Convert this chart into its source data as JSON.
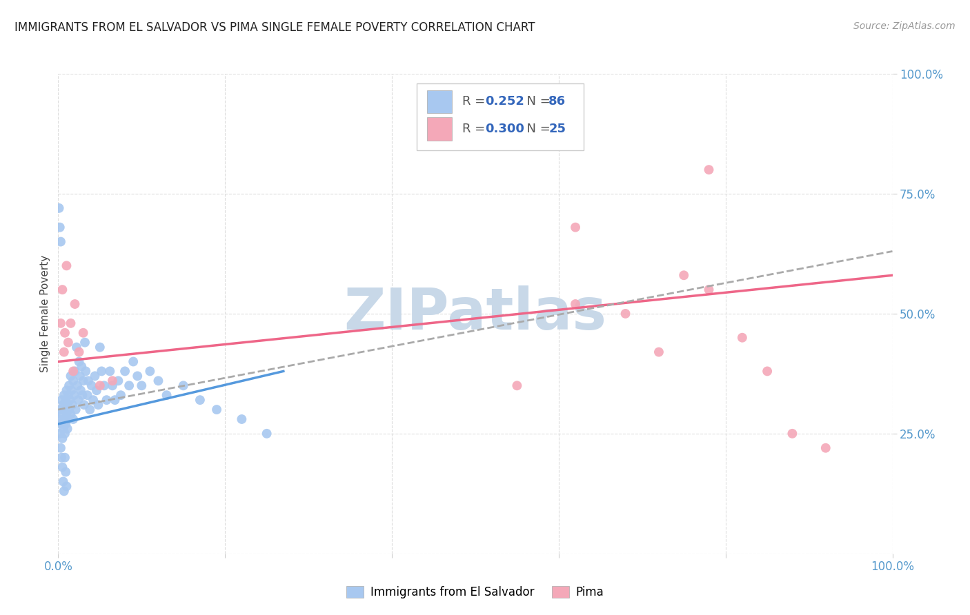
{
  "title": "IMMIGRANTS FROM EL SALVADOR VS PIMA SINGLE FEMALE POVERTY CORRELATION CHART",
  "source": "Source: ZipAtlas.com",
  "ylabel": "Single Female Poverty",
  "xlim": [
    0.0,
    1.0
  ],
  "ylim": [
    0.0,
    1.0
  ],
  "legend_r_blue": "0.252",
  "legend_n_blue": "86",
  "legend_r_pink": "0.300",
  "legend_n_pink": "25",
  "blue_color": "#A8C8F0",
  "pink_color": "#F4A8B8",
  "blue_line_color": "#5599DD",
  "pink_line_color": "#EE6688",
  "dashed_line_color": "#AAAAAA",
  "watermark_color": "#C8D8E8",
  "blue_scatter_x": [
    0.001,
    0.002,
    0.003,
    0.003,
    0.004,
    0.004,
    0.005,
    0.005,
    0.006,
    0.006,
    0.007,
    0.007,
    0.008,
    0.008,
    0.009,
    0.009,
    0.01,
    0.01,
    0.011,
    0.011,
    0.012,
    0.012,
    0.013,
    0.013,
    0.014,
    0.015,
    0.015,
    0.016,
    0.017,
    0.018,
    0.018,
    0.019,
    0.02,
    0.021,
    0.022,
    0.023,
    0.024,
    0.025,
    0.026,
    0.027,
    0.028,
    0.029,
    0.03,
    0.031,
    0.032,
    0.033,
    0.035,
    0.036,
    0.038,
    0.04,
    0.042,
    0.044,
    0.046,
    0.048,
    0.05,
    0.052,
    0.055,
    0.058,
    0.062,
    0.065,
    0.068,
    0.072,
    0.075,
    0.08,
    0.085,
    0.09,
    0.095,
    0.1,
    0.11,
    0.12,
    0.13,
    0.15,
    0.17,
    0.19,
    0.22,
    0.25,
    0.001,
    0.002,
    0.003,
    0.004,
    0.005,
    0.006,
    0.007,
    0.008,
    0.009,
    0.01
  ],
  "blue_scatter_y": [
    0.28,
    0.25,
    0.3,
    0.22,
    0.32,
    0.27,
    0.29,
    0.24,
    0.31,
    0.26,
    0.33,
    0.28,
    0.3,
    0.25,
    0.32,
    0.27,
    0.34,
    0.29,
    0.31,
    0.26,
    0.33,
    0.28,
    0.35,
    0.3,
    0.32,
    0.37,
    0.29,
    0.34,
    0.31,
    0.36,
    0.28,
    0.33,
    0.38,
    0.3,
    0.43,
    0.35,
    0.32,
    0.4,
    0.37,
    0.34,
    0.39,
    0.33,
    0.36,
    0.31,
    0.44,
    0.38,
    0.33,
    0.36,
    0.3,
    0.35,
    0.32,
    0.37,
    0.34,
    0.31,
    0.43,
    0.38,
    0.35,
    0.32,
    0.38,
    0.35,
    0.32,
    0.36,
    0.33,
    0.38,
    0.35,
    0.4,
    0.37,
    0.35,
    0.38,
    0.36,
    0.33,
    0.35,
    0.32,
    0.3,
    0.28,
    0.25,
    0.72,
    0.68,
    0.65,
    0.2,
    0.18,
    0.15,
    0.13,
    0.2,
    0.17,
    0.14
  ],
  "pink_scatter_x": [
    0.003,
    0.005,
    0.007,
    0.008,
    0.01,
    0.012,
    0.015,
    0.018,
    0.02,
    0.025,
    0.03,
    0.05,
    0.065,
    0.55,
    0.62,
    0.68,
    0.72,
    0.75,
    0.78,
    0.82,
    0.85,
    0.88,
    0.92,
    0.78,
    0.62
  ],
  "pink_scatter_y": [
    0.48,
    0.55,
    0.42,
    0.46,
    0.6,
    0.44,
    0.48,
    0.38,
    0.52,
    0.42,
    0.46,
    0.35,
    0.36,
    0.35,
    0.52,
    0.5,
    0.42,
    0.58,
    0.55,
    0.45,
    0.38,
    0.25,
    0.22,
    0.8,
    0.68
  ],
  "blue_trend_x": [
    0.0,
    0.27
  ],
  "blue_trend_y": [
    0.27,
    0.38
  ],
  "pink_trend_x": [
    0.0,
    1.0
  ],
  "pink_trend_y": [
    0.4,
    0.58
  ],
  "dashed_trend_x": [
    0.0,
    1.0
  ],
  "dashed_trend_y": [
    0.3,
    0.63
  ],
  "background_color": "#FFFFFF",
  "grid_color": "#DDDDDD"
}
